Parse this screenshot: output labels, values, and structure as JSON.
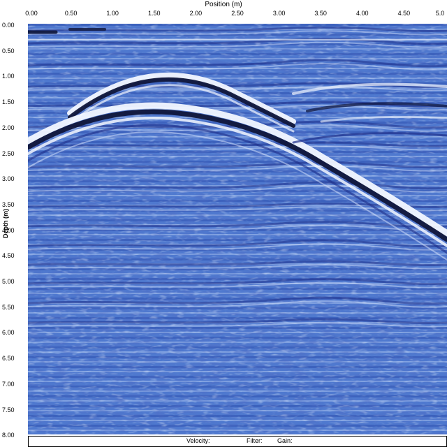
{
  "axes": {
    "x_title": "Position (m)",
    "y_title": "Depth (m)",
    "x_ticks": [
      "0.00",
      "0.50",
      "1.00",
      "1.50",
      "2.00",
      "2.50",
      "3.00",
      "3.50",
      "4.00",
      "4.50",
      "5.0"
    ],
    "y_ticks": [
      "0.00",
      "0.50",
      "1.00",
      "1.50",
      "2.00",
      "2.50",
      "3.00",
      "3.50",
      "4.00",
      "4.50",
      "5.00",
      "5.50",
      "6.00",
      "6.50",
      "7.00",
      "7.50",
      "8.00"
    ]
  },
  "status_bar": {
    "velocity_label": "Velocity:",
    "filter_label": "Filter:",
    "gain_label": "Gain:"
  },
  "colors": {
    "background": "#4f79cf",
    "dark_band": "#10163a",
    "light_band": "#f2f7ff"
  }
}
